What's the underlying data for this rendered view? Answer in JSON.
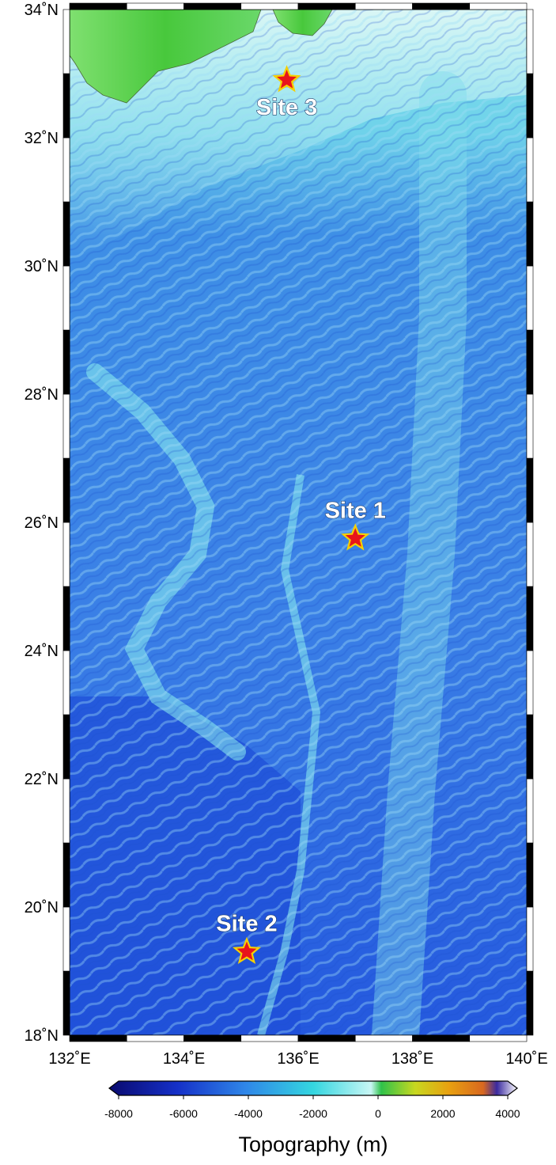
{
  "map": {
    "region": {
      "lon_min": 132,
      "lon_max": 140,
      "lat_min": 18,
      "lat_max": 34
    },
    "lat_ticks": [
      {
        "value": 34,
        "label": "34˚N"
      },
      {
        "value": 32,
        "label": "32˚N"
      },
      {
        "value": 30,
        "label": "30˚N"
      },
      {
        "value": 28,
        "label": "28˚N"
      },
      {
        "value": 26,
        "label": "26˚N"
      },
      {
        "value": 24,
        "label": "24˚N"
      },
      {
        "value": 22,
        "label": "22˚N"
      },
      {
        "value": 20,
        "label": "20˚N"
      },
      {
        "value": 18,
        "label": "18˚N"
      }
    ],
    "lon_ticks": [
      {
        "value": 132,
        "label": "132˚E"
      },
      {
        "value": 134,
        "label": "134˚E"
      },
      {
        "value": 136,
        "label": "136˚E"
      },
      {
        "value": 138,
        "label": "138˚E"
      },
      {
        "value": 140,
        "label": "140˚E"
      }
    ],
    "sites": [
      {
        "name": "Site 3",
        "lon": 135.8,
        "lat": 32.9,
        "label_pos": "below"
      },
      {
        "name": "Site 1",
        "lon": 137.0,
        "lat": 25.75,
        "label_pos": "above"
      },
      {
        "name": "Site 2",
        "lon": 135.1,
        "lat": 19.3,
        "label_pos": "above"
      }
    ],
    "marker_color": "#e8141b",
    "marker_outline": "#f5d000",
    "land_color": "#5fd34a",
    "colors": {
      "deep": "#1b4fd9",
      "mid": "#3a86e6",
      "shallow": "#56c8e8",
      "ridge": "#7fe6ee"
    }
  },
  "colorbar": {
    "min": -8000,
    "max": 4000,
    "ticks": [
      {
        "value": -8000,
        "label": "-8000"
      },
      {
        "value": -6000,
        "label": "-6000"
      },
      {
        "value": -4000,
        "label": "-4000"
      },
      {
        "value": -2000,
        "label": "-2000"
      },
      {
        "value": 0,
        "label": "0"
      },
      {
        "value": 2000,
        "label": "2000"
      },
      {
        "value": 4000,
        "label": "4000"
      }
    ],
    "title": "Topography (m)",
    "stops": [
      {
        "value": -8000,
        "color": "#0a0a6e"
      },
      {
        "value": -6000,
        "color": "#1530c8"
      },
      {
        "value": -4000,
        "color": "#2f86e8"
      },
      {
        "value": -2000,
        "color": "#34d6e0"
      },
      {
        "value": -300,
        "color": "#c8f6f4"
      },
      {
        "value": 0,
        "color": "#2fc24a"
      },
      {
        "value": 1000,
        "color": "#c8d820"
      },
      {
        "value": 2000,
        "color": "#e8a010"
      },
      {
        "value": 3000,
        "color": "#d86820"
      },
      {
        "value": 3400,
        "color": "#3a2aa0"
      },
      {
        "value": 4000,
        "color": "#ffffff"
      }
    ]
  }
}
